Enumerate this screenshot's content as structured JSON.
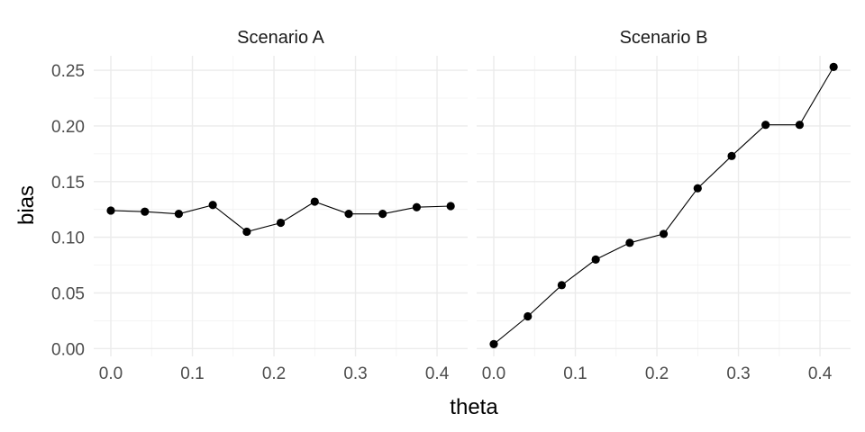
{
  "chart_data": {
    "type": "line",
    "xlabel": "theta",
    "ylabel": "bias",
    "ylim": [
      -0.007,
      0.263
    ],
    "xlim": [
      -0.021,
      0.4375
    ],
    "y_ticks": [
      0.0,
      0.05,
      0.1,
      0.15,
      0.2,
      0.25
    ],
    "y_tick_labels": [
      "0.00",
      "0.05",
      "0.10",
      "0.15",
      "0.20",
      "0.25"
    ],
    "x_ticks": [
      0.0,
      0.1,
      0.2,
      0.3,
      0.4
    ],
    "x_tick_labels": [
      "0.0",
      "0.1",
      "0.2",
      "0.3",
      "0.4"
    ],
    "grid": true,
    "legend": "none",
    "colors": {
      "series": "#000000",
      "grid": "#ebebeb",
      "background": "#ffffff"
    },
    "panels": [
      {
        "title": "Scenario A",
        "x": [
          0.0,
          0.0417,
          0.0833,
          0.125,
          0.1667,
          0.2083,
          0.25,
          0.2917,
          0.3333,
          0.375,
          0.4167
        ],
        "y": [
          0.124,
          0.123,
          0.121,
          0.129,
          0.105,
          0.113,
          0.132,
          0.121,
          0.121,
          0.127,
          0.128
        ]
      },
      {
        "title": "Scenario B",
        "x": [
          0.0,
          0.0417,
          0.0833,
          0.125,
          0.1667,
          0.2083,
          0.25,
          0.2917,
          0.3333,
          0.375,
          0.4167
        ],
        "y": [
          0.004,
          0.029,
          0.057,
          0.08,
          0.095,
          0.103,
          0.144,
          0.173,
          0.201,
          0.201,
          0.253
        ]
      }
    ]
  }
}
